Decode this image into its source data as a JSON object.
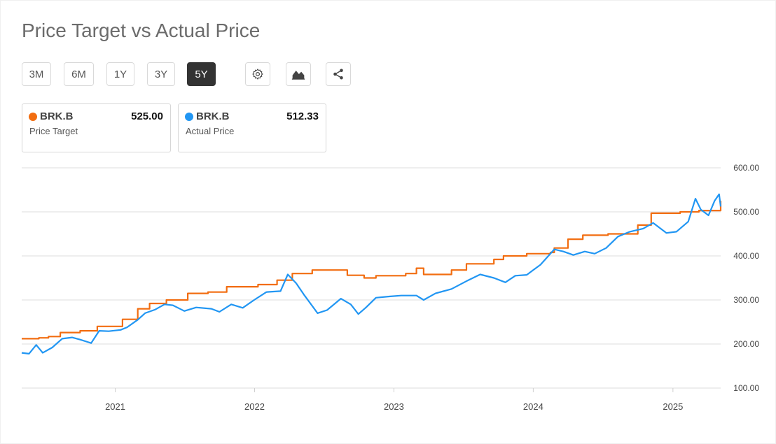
{
  "title": "Price Target vs Actual Price",
  "range_buttons": [
    {
      "label": "3M",
      "active": false
    },
    {
      "label": "6M",
      "active": false
    },
    {
      "label": "1Y",
      "active": false
    },
    {
      "label": "3Y",
      "active": false
    },
    {
      "label": "5Y",
      "active": true
    }
  ],
  "tool_buttons": [
    "gear-icon",
    "chart-type-icon",
    "share-icon"
  ],
  "legend": [
    {
      "symbol": "BRK.B",
      "value": "525.00",
      "label": "Price Target",
      "color": "#f26d10"
    },
    {
      "symbol": "BRK.B",
      "value": "512.33",
      "label": "Actual Price",
      "color": "#2196f3"
    }
  ],
  "chart_data": {
    "type": "line",
    "x_axis_labels": [
      "2021",
      "2022",
      "2023",
      "2024",
      "2025"
    ],
    "y_ticks": [
      "600.00",
      "500.00",
      "400.00",
      "300.00",
      "200.00",
      "100.00"
    ],
    "ylim": [
      100,
      600
    ],
    "xlim": [
      "2020-05-01",
      "2025-05-06"
    ],
    "grid": true,
    "series": [
      {
        "name": "Price Target",
        "color": "#f26d10",
        "step": true,
        "points": [
          [
            "2020-05-01",
            212
          ],
          [
            "2020-06-15",
            214
          ],
          [
            "2020-07-10",
            217
          ],
          [
            "2020-08-10",
            226
          ],
          [
            "2020-10-01",
            230
          ],
          [
            "2020-11-15",
            240
          ],
          [
            "2021-01-20",
            256
          ],
          [
            "2021-03-01",
            280
          ],
          [
            "2021-04-01",
            292
          ],
          [
            "2021-05-15",
            300
          ],
          [
            "2021-07-10",
            315
          ],
          [
            "2021-09-01",
            318
          ],
          [
            "2021-10-20",
            330
          ],
          [
            "2022-01-10",
            335
          ],
          [
            "2022-03-01",
            345
          ],
          [
            "2022-04-10",
            360
          ],
          [
            "2022-06-01",
            368
          ],
          [
            "2022-09-01",
            356
          ],
          [
            "2022-10-15",
            350
          ],
          [
            "2022-11-15",
            355
          ],
          [
            "2023-02-01",
            360
          ],
          [
            "2023-03-01",
            372
          ],
          [
            "2023-03-20",
            358
          ],
          [
            "2023-06-01",
            368
          ],
          [
            "2023-07-10",
            382
          ],
          [
            "2023-09-20",
            392
          ],
          [
            "2023-10-15",
            400
          ],
          [
            "2023-12-15",
            405
          ],
          [
            "2024-02-15",
            408
          ],
          [
            "2024-02-25",
            418
          ],
          [
            "2024-04-01",
            438
          ],
          [
            "2024-05-10",
            447
          ],
          [
            "2024-07-15",
            450
          ],
          [
            "2024-10-01",
            470
          ],
          [
            "2024-11-05",
            497
          ],
          [
            "2025-01-20",
            500
          ],
          [
            "2025-03-10",
            503
          ],
          [
            "2025-05-06",
            525
          ]
        ]
      },
      {
        "name": "Actual Price",
        "color": "#2196f3",
        "step": false,
        "points": [
          [
            "2020-05-01",
            180
          ],
          [
            "2020-05-20",
            178
          ],
          [
            "2020-06-08",
            198
          ],
          [
            "2020-06-25",
            180
          ],
          [
            "2020-07-20",
            192
          ],
          [
            "2020-08-15",
            212
          ],
          [
            "2020-09-10",
            215
          ],
          [
            "2020-10-01",
            210
          ],
          [
            "2020-10-30",
            202
          ],
          [
            "2020-11-20",
            230
          ],
          [
            "2020-12-15",
            229
          ],
          [
            "2021-01-15",
            232
          ],
          [
            "2021-02-01",
            238
          ],
          [
            "2021-03-01",
            255
          ],
          [
            "2021-03-20",
            270
          ],
          [
            "2021-04-15",
            278
          ],
          [
            "2021-05-10",
            290
          ],
          [
            "2021-06-01",
            288
          ],
          [
            "2021-07-01",
            275
          ],
          [
            "2021-08-01",
            283
          ],
          [
            "2021-09-10",
            280
          ],
          [
            "2021-10-01",
            273
          ],
          [
            "2021-11-01",
            290
          ],
          [
            "2021-12-01",
            282
          ],
          [
            "2021-12-31",
            300
          ],
          [
            "2022-02-01",
            318
          ],
          [
            "2022-03-10",
            320
          ],
          [
            "2022-03-29",
            358
          ],
          [
            "2022-04-20",
            338
          ],
          [
            "2022-05-12",
            310
          ],
          [
            "2022-06-15",
            270
          ],
          [
            "2022-07-10",
            277
          ],
          [
            "2022-08-15",
            303
          ],
          [
            "2022-09-10",
            290
          ],
          [
            "2022-09-30",
            268
          ],
          [
            "2022-10-20",
            283
          ],
          [
            "2022-11-15",
            305
          ],
          [
            "2022-12-20",
            308
          ],
          [
            "2023-01-20",
            310
          ],
          [
            "2023-03-01",
            310
          ],
          [
            "2023-03-20",
            300
          ],
          [
            "2023-04-20",
            315
          ],
          [
            "2023-06-01",
            325
          ],
          [
            "2023-07-15",
            345
          ],
          [
            "2023-08-15",
            358
          ],
          [
            "2023-09-20",
            350
          ],
          [
            "2023-10-20",
            340
          ],
          [
            "2023-11-15",
            355
          ],
          [
            "2023-12-15",
            357
          ],
          [
            "2024-01-20",
            380
          ],
          [
            "2024-02-25",
            415
          ],
          [
            "2024-03-20",
            410
          ],
          [
            "2024-04-15",
            402
          ],
          [
            "2024-05-15",
            410
          ],
          [
            "2024-06-10",
            405
          ],
          [
            "2024-07-10",
            418
          ],
          [
            "2024-08-10",
            444
          ],
          [
            "2024-09-10",
            455
          ],
          [
            "2024-10-15",
            462
          ],
          [
            "2024-11-10",
            475
          ],
          [
            "2024-12-15",
            452
          ],
          [
            "2025-01-10",
            455
          ],
          [
            "2025-02-10",
            478
          ],
          [
            "2025-03-01",
            530
          ],
          [
            "2025-03-15",
            505
          ],
          [
            "2025-04-04",
            492
          ],
          [
            "2025-04-20",
            525
          ],
          [
            "2025-05-02",
            540
          ],
          [
            "2025-05-06",
            512
          ]
        ]
      }
    ]
  }
}
